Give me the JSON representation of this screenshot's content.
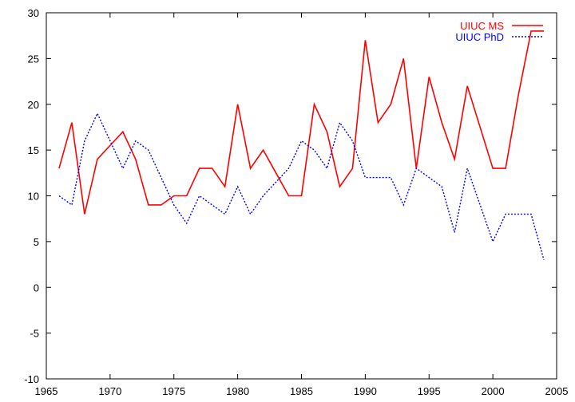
{
  "chart_data": {
    "type": "line",
    "title": "",
    "xlabel": "",
    "ylabel": "",
    "xlim": [
      1965,
      2005
    ],
    "ylim": [
      -10,
      30
    ],
    "xticks": [
      1965,
      1970,
      1975,
      1980,
      1985,
      1990,
      1995,
      2000,
      2005
    ],
    "yticks": [
      -10,
      -5,
      0,
      5,
      10,
      15,
      20,
      25,
      30
    ],
    "grid": false,
    "legend_position": "top-right",
    "x": [
      1966,
      1967,
      1968,
      1969,
      1970,
      1971,
      1972,
      1973,
      1974,
      1975,
      1976,
      1977,
      1978,
      1979,
      1980,
      1981,
      1982,
      1983,
      1984,
      1985,
      1986,
      1987,
      1988,
      1989,
      1990,
      1991,
      1992,
      1993,
      1994,
      1995,
      1996,
      1997,
      1998,
      1999,
      2000,
      2001,
      2002,
      2003,
      2004
    ],
    "series": [
      {
        "name": "UIUC MS",
        "color": "#ff0000",
        "dash": "solid",
        "values": [
          13,
          18,
          8,
          14,
          15.5,
          17,
          14,
          9,
          9,
          10,
          10,
          13,
          13,
          11,
          20,
          13,
          15,
          12.5,
          10,
          10,
          20,
          17,
          11,
          13,
          27,
          18,
          20,
          25,
          13,
          23,
          18,
          14,
          22,
          17.5,
          13,
          13,
          21,
          28,
          28
        ]
      },
      {
        "name": "UIUC PhD",
        "color": "#0000ff",
        "dash": "dotted",
        "values": [
          10,
          9,
          16,
          19,
          16,
          13,
          16,
          15,
          12,
          9,
          7,
          10,
          9,
          8,
          11,
          8,
          10,
          11.5,
          13,
          16,
          15,
          13,
          18,
          16,
          12,
          12,
          12,
          9,
          13,
          12,
          11,
          6,
          13,
          9,
          5,
          8,
          8,
          8,
          3
        ]
      }
    ]
  }
}
